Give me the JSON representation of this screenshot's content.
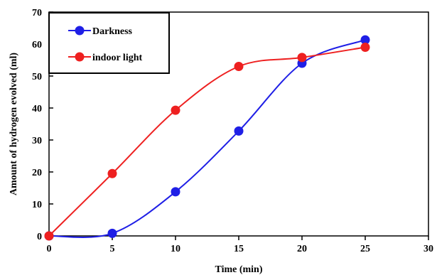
{
  "chart_data": {
    "type": "line",
    "xlabel": "Time (min)",
    "ylabel": "Amount of hydrogen evolved (ml)",
    "xlim": [
      0,
      30
    ],
    "ylim": [
      0,
      70
    ],
    "x_ticks": [
      "0",
      "5",
      "10",
      "15",
      "20",
      "25",
      "30"
    ],
    "y_ticks": [
      "0",
      "10",
      "20",
      "30",
      "40",
      "50",
      "60",
      "70"
    ],
    "grid": false,
    "legend_position": "top-left",
    "series": [
      {
        "name": "Darkness",
        "color": "#1f1fe6",
        "x": [
          0,
          5,
          10,
          15,
          20,
          25
        ],
        "y": [
          0,
          0.8,
          13.8,
          32.8,
          54,
          61.3
        ]
      },
      {
        "name": "indoor light",
        "color": "#ee2020",
        "x": [
          0,
          5,
          10,
          15,
          20,
          25
        ],
        "y": [
          0,
          19.5,
          39.3,
          53,
          55.8,
          59
        ]
      }
    ]
  }
}
